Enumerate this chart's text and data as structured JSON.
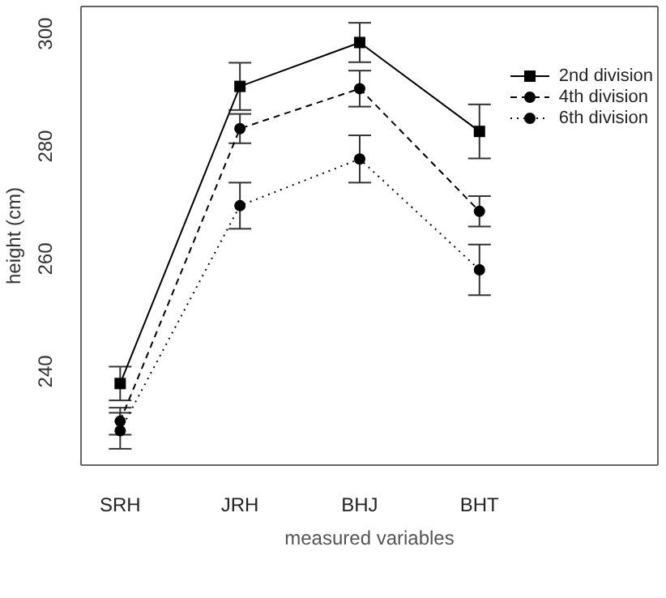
{
  "chart_data": {
    "type": "line",
    "xlabel": "measured variables",
    "ylabel": "height (cm)",
    "categories": [
      "SRH",
      "JRH",
      "BHJ",
      "BHT"
    ],
    "series": [
      {
        "name": "2nd division",
        "color": "#000000",
        "marker": "square",
        "line_style": "solid",
        "values": [
          239.0,
          291.8,
          299.6,
          283.8
        ],
        "errors": [
          3.0,
          4.2,
          3.5,
          4.8
        ]
      },
      {
        "name": "4th division",
        "color": "#000000",
        "marker": "circle",
        "line_style": "dashed",
        "values": [
          232.3,
          284.3,
          291.4,
          269.6
        ],
        "errors": [
          2.4,
          2.6,
          3.2,
          2.7
        ]
      },
      {
        "name": "6th division",
        "color": "#000000",
        "marker": "circle",
        "line_style": "dotted",
        "values": [
          230.6,
          270.6,
          278.9,
          259.2
        ],
        "errors": [
          3.2,
          4.1,
          4.2,
          4.5
        ]
      }
    ],
    "ylim": [
      224.5,
      306
    ],
    "yticks": [
      240,
      260,
      280,
      300
    ],
    "grid": false,
    "legend": "top right"
  }
}
